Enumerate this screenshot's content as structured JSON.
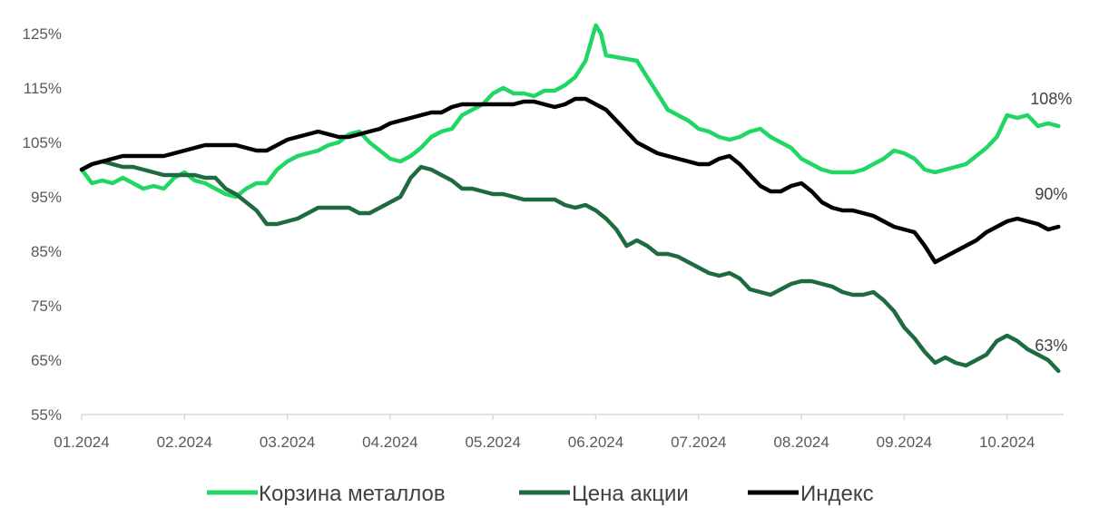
{
  "chart_data": {
    "type": "line",
    "title": "",
    "xlabel": "",
    "ylabel": "",
    "ylim": [
      55,
      125
    ],
    "y_ticks": [
      "55%",
      "65%",
      "75%",
      "85%",
      "95%",
      "105%",
      "115%",
      "125%"
    ],
    "x_ticks": [
      "01.2024",
      "02.2024",
      "03.2024",
      "04.2024",
      "05.2024",
      "06.2024",
      "07.2024",
      "08.2024",
      "09.2024",
      "10.2024"
    ],
    "x_range_months": [
      0,
      9.55
    ],
    "grid": false,
    "legend_position": "bottom",
    "series": [
      {
        "name": "Корзина металлов",
        "color": "#21D763",
        "end_label": "108%",
        "points": [
          [
            0.0,
            100
          ],
          [
            0.1,
            97.5
          ],
          [
            0.2,
            98
          ],
          [
            0.3,
            97.5
          ],
          [
            0.4,
            98.5
          ],
          [
            0.5,
            97.5
          ],
          [
            0.6,
            96.5
          ],
          [
            0.7,
            97
          ],
          [
            0.8,
            96.5
          ],
          [
            0.9,
            98.5
          ],
          [
            1.0,
            99.5
          ],
          [
            1.1,
            98
          ],
          [
            1.2,
            97.5
          ],
          [
            1.3,
            96.5
          ],
          [
            1.4,
            95.5
          ],
          [
            1.5,
            95
          ],
          [
            1.6,
            96.5
          ],
          [
            1.7,
            97.5
          ],
          [
            1.8,
            97.5
          ],
          [
            1.9,
            100
          ],
          [
            2.0,
            101.5
          ],
          [
            2.1,
            102.5
          ],
          [
            2.2,
            103
          ],
          [
            2.3,
            103.5
          ],
          [
            2.4,
            104.5
          ],
          [
            2.5,
            105
          ],
          [
            2.6,
            106.5
          ],
          [
            2.7,
            107
          ],
          [
            2.8,
            105
          ],
          [
            2.9,
            103.5
          ],
          [
            3.0,
            102
          ],
          [
            3.1,
            101.5
          ],
          [
            3.2,
            102.5
          ],
          [
            3.3,
            104
          ],
          [
            3.4,
            106
          ],
          [
            3.5,
            107
          ],
          [
            3.6,
            107.5
          ],
          [
            3.7,
            110
          ],
          [
            3.8,
            111
          ],
          [
            3.9,
            112
          ],
          [
            4.0,
            114
          ],
          [
            4.1,
            115
          ],
          [
            4.2,
            114
          ],
          [
            4.3,
            114
          ],
          [
            4.4,
            113.5
          ],
          [
            4.5,
            114.5
          ],
          [
            4.6,
            114.5
          ],
          [
            4.7,
            115.5
          ],
          [
            4.8,
            117
          ],
          [
            4.9,
            120
          ],
          [
            5.0,
            126.5
          ],
          [
            5.05,
            125
          ],
          [
            5.1,
            121
          ],
          [
            5.25,
            120.5
          ],
          [
            5.4,
            120
          ],
          [
            5.5,
            117
          ],
          [
            5.6,
            114
          ],
          [
            5.7,
            111
          ],
          [
            5.8,
            110
          ],
          [
            5.9,
            109
          ],
          [
            6.0,
            107.5
          ],
          [
            6.1,
            107
          ],
          [
            6.2,
            106
          ],
          [
            6.3,
            105.5
          ],
          [
            6.4,
            106
          ],
          [
            6.5,
            107
          ],
          [
            6.6,
            107.5
          ],
          [
            6.7,
            106
          ],
          [
            6.8,
            105
          ],
          [
            6.9,
            104
          ],
          [
            7.0,
            102
          ],
          [
            7.1,
            101
          ],
          [
            7.2,
            100
          ],
          [
            7.3,
            99.5
          ],
          [
            7.4,
            99.5
          ],
          [
            7.5,
            99.5
          ],
          [
            7.6,
            100
          ],
          [
            7.7,
            101
          ],
          [
            7.8,
            102
          ],
          [
            7.9,
            103.5
          ],
          [
            8.0,
            103
          ],
          [
            8.1,
            102
          ],
          [
            8.2,
            100
          ],
          [
            8.3,
            99.5
          ],
          [
            8.4,
            100
          ],
          [
            8.5,
            100.5
          ],
          [
            8.6,
            101
          ],
          [
            8.7,
            102.5
          ],
          [
            8.8,
            104
          ],
          [
            8.9,
            106
          ],
          [
            9.0,
            110
          ],
          [
            9.1,
            109.5
          ],
          [
            9.2,
            110
          ],
          [
            9.3,
            108
          ],
          [
            9.4,
            108.5
          ],
          [
            9.5,
            108
          ]
        ]
      },
      {
        "name": "Цена акции",
        "color": "#1E6B3F",
        "end_label": "63%",
        "points": [
          [
            0.0,
            100
          ],
          [
            0.1,
            101
          ],
          [
            0.2,
            101.5
          ],
          [
            0.3,
            101
          ],
          [
            0.4,
            100.5
          ],
          [
            0.5,
            100.5
          ],
          [
            0.6,
            100
          ],
          [
            0.7,
            99.5
          ],
          [
            0.8,
            99
          ],
          [
            0.9,
            99
          ],
          [
            1.0,
            99
          ],
          [
            1.1,
            99
          ],
          [
            1.2,
            98.5
          ],
          [
            1.3,
            98.5
          ],
          [
            1.4,
            96.5
          ],
          [
            1.5,
            95.5
          ],
          [
            1.6,
            94
          ],
          [
            1.7,
            92.5
          ],
          [
            1.8,
            90
          ],
          [
            1.9,
            90
          ],
          [
            2.0,
            90.5
          ],
          [
            2.1,
            91
          ],
          [
            2.2,
            92
          ],
          [
            2.3,
            93
          ],
          [
            2.4,
            93
          ],
          [
            2.5,
            93
          ],
          [
            2.6,
            93
          ],
          [
            2.7,
            92
          ],
          [
            2.8,
            92
          ],
          [
            2.9,
            93
          ],
          [
            3.0,
            94
          ],
          [
            3.1,
            95
          ],
          [
            3.2,
            98.5
          ],
          [
            3.3,
            100.5
          ],
          [
            3.4,
            100
          ],
          [
            3.5,
            99
          ],
          [
            3.6,
            98
          ],
          [
            3.7,
            96.5
          ],
          [
            3.8,
            96.5
          ],
          [
            3.9,
            96
          ],
          [
            4.0,
            95.5
          ],
          [
            4.1,
            95.5
          ],
          [
            4.2,
            95
          ],
          [
            4.3,
            94.5
          ],
          [
            4.4,
            94.5
          ],
          [
            4.5,
            94.5
          ],
          [
            4.6,
            94.5
          ],
          [
            4.7,
            93.5
          ],
          [
            4.8,
            93
          ],
          [
            4.9,
            93.5
          ],
          [
            5.0,
            92.5
          ],
          [
            5.1,
            91
          ],
          [
            5.2,
            89
          ],
          [
            5.3,
            86
          ],
          [
            5.4,
            87
          ],
          [
            5.5,
            86
          ],
          [
            5.6,
            84.5
          ],
          [
            5.7,
            84.5
          ],
          [
            5.8,
            84
          ],
          [
            5.9,
            83
          ],
          [
            6.0,
            82
          ],
          [
            6.1,
            81
          ],
          [
            6.2,
            80.5
          ],
          [
            6.3,
            81
          ],
          [
            6.4,
            80
          ],
          [
            6.5,
            78
          ],
          [
            6.6,
            77.5
          ],
          [
            6.7,
            77
          ],
          [
            6.8,
            78
          ],
          [
            6.9,
            79
          ],
          [
            7.0,
            79.5
          ],
          [
            7.1,
            79.5
          ],
          [
            7.2,
            79
          ],
          [
            7.3,
            78.5
          ],
          [
            7.4,
            77.5
          ],
          [
            7.5,
            77
          ],
          [
            7.6,
            77
          ],
          [
            7.7,
            77.5
          ],
          [
            7.8,
            76
          ],
          [
            7.9,
            74
          ],
          [
            8.0,
            71
          ],
          [
            8.1,
            69
          ],
          [
            8.2,
            66.5
          ],
          [
            8.3,
            64.5
          ],
          [
            8.4,
            65.5
          ],
          [
            8.5,
            64.5
          ],
          [
            8.6,
            64
          ],
          [
            8.7,
            65
          ],
          [
            8.8,
            66
          ],
          [
            8.9,
            68.5
          ],
          [
            9.0,
            69.5
          ],
          [
            9.1,
            68.5
          ],
          [
            9.2,
            67
          ],
          [
            9.3,
            66
          ],
          [
            9.4,
            65
          ],
          [
            9.5,
            63
          ]
        ]
      },
      {
        "name": "Индекс",
        "color": "#000000",
        "end_label": "90%",
        "points": [
          [
            0.0,
            100
          ],
          [
            0.1,
            101
          ],
          [
            0.2,
            101.5
          ],
          [
            0.3,
            102
          ],
          [
            0.4,
            102.5
          ],
          [
            0.5,
            102.5
          ],
          [
            0.6,
            102.5
          ],
          [
            0.7,
            102.5
          ],
          [
            0.8,
            102.5
          ],
          [
            0.9,
            103
          ],
          [
            1.0,
            103.5
          ],
          [
            1.1,
            104
          ],
          [
            1.2,
            104.5
          ],
          [
            1.3,
            104.5
          ],
          [
            1.4,
            104.5
          ],
          [
            1.5,
            104.5
          ],
          [
            1.6,
            104
          ],
          [
            1.7,
            103.5
          ],
          [
            1.8,
            103.5
          ],
          [
            1.9,
            104.5
          ],
          [
            2.0,
            105.5
          ],
          [
            2.1,
            106
          ],
          [
            2.2,
            106.5
          ],
          [
            2.3,
            107
          ],
          [
            2.4,
            106.5
          ],
          [
            2.5,
            106
          ],
          [
            2.6,
            106
          ],
          [
            2.7,
            106.5
          ],
          [
            2.8,
            107
          ],
          [
            2.9,
            107.5
          ],
          [
            3.0,
            108.5
          ],
          [
            3.1,
            109
          ],
          [
            3.2,
            109.5
          ],
          [
            3.3,
            110
          ],
          [
            3.4,
            110.5
          ],
          [
            3.5,
            110.5
          ],
          [
            3.6,
            111.5
          ],
          [
            3.7,
            112
          ],
          [
            3.8,
            112
          ],
          [
            3.9,
            112
          ],
          [
            4.0,
            112
          ],
          [
            4.1,
            112
          ],
          [
            4.2,
            112
          ],
          [
            4.3,
            112.5
          ],
          [
            4.4,
            112.5
          ],
          [
            4.5,
            112
          ],
          [
            4.6,
            111.5
          ],
          [
            4.7,
            112
          ],
          [
            4.8,
            113
          ],
          [
            4.9,
            113
          ],
          [
            5.0,
            112
          ],
          [
            5.1,
            111
          ],
          [
            5.2,
            109
          ],
          [
            5.3,
            107
          ],
          [
            5.4,
            105
          ],
          [
            5.5,
            104
          ],
          [
            5.6,
            103
          ],
          [
            5.7,
            102.5
          ],
          [
            5.8,
            102
          ],
          [
            5.9,
            101.5
          ],
          [
            6.0,
            101
          ],
          [
            6.1,
            101
          ],
          [
            6.2,
            102
          ],
          [
            6.3,
            102.5
          ],
          [
            6.4,
            101
          ],
          [
            6.5,
            99
          ],
          [
            6.6,
            97
          ],
          [
            6.7,
            96
          ],
          [
            6.8,
            96
          ],
          [
            6.9,
            97
          ],
          [
            7.0,
            97.5
          ],
          [
            7.1,
            96
          ],
          [
            7.2,
            94
          ],
          [
            7.3,
            93
          ],
          [
            7.4,
            92.5
          ],
          [
            7.5,
            92.5
          ],
          [
            7.6,
            92
          ],
          [
            7.7,
            91.5
          ],
          [
            7.8,
            90.5
          ],
          [
            7.9,
            89.5
          ],
          [
            8.0,
            89
          ],
          [
            8.1,
            88.5
          ],
          [
            8.2,
            86
          ],
          [
            8.3,
            83
          ],
          [
            8.4,
            84
          ],
          [
            8.5,
            85
          ],
          [
            8.6,
            86
          ],
          [
            8.7,
            87
          ],
          [
            8.8,
            88.5
          ],
          [
            8.9,
            89.5
          ],
          [
            9.0,
            90.5
          ],
          [
            9.1,
            91
          ],
          [
            9.2,
            90.5
          ],
          [
            9.3,
            90
          ],
          [
            9.4,
            89
          ],
          [
            9.5,
            89.5
          ]
        ]
      }
    ]
  }
}
